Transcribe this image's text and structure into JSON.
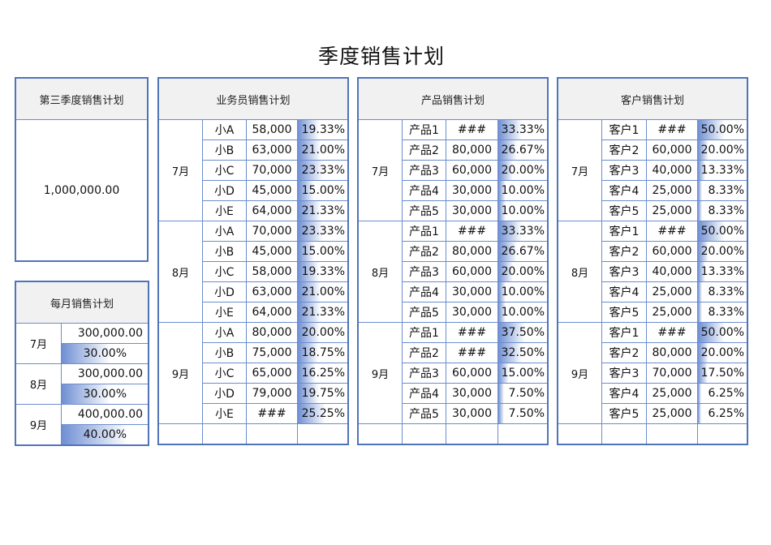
{
  "page_title": "季度销售计划",
  "quarter_panel": {
    "header": "第三季度销售计划",
    "total": "1,000,000.00"
  },
  "monthly_panel": {
    "header": "每月销售计划",
    "rows": [
      {
        "month": "7月",
        "amount": "300,000.00",
        "pct": "30.00%",
        "bar": 30
      },
      {
        "month": "8月",
        "amount": "300,000.00",
        "pct": "30.00%",
        "bar": 30
      },
      {
        "month": "9月",
        "amount": "400,000.00",
        "pct": "40.00%",
        "bar": 40
      }
    ]
  },
  "salesman_panel": {
    "header": "业务员销售计划",
    "groups": [
      {
        "month": "7月",
        "rows": [
          {
            "name": "小A",
            "amount": "58,000",
            "pct": "19.33%"
          },
          {
            "name": "小B",
            "amount": "63,000",
            "pct": "21.00%"
          },
          {
            "name": "小C",
            "amount": "70,000",
            "pct": "23.33%"
          },
          {
            "name": "小D",
            "amount": "45,000",
            "pct": "15.00%"
          },
          {
            "name": "小E",
            "amount": "64,000",
            "pct": "21.33%"
          }
        ]
      },
      {
        "month": "8月",
        "rows": [
          {
            "name": "小A",
            "amount": "70,000",
            "pct": "23.33%"
          },
          {
            "name": "小B",
            "amount": "45,000",
            "pct": "15.00%"
          },
          {
            "name": "小C",
            "amount": "58,000",
            "pct": "19.33%"
          },
          {
            "name": "小D",
            "amount": "63,000",
            "pct": "21.00%"
          },
          {
            "name": "小E",
            "amount": "64,000",
            "pct": "21.33%"
          }
        ]
      },
      {
        "month": "9月",
        "rows": [
          {
            "name": "小A",
            "amount": "80,000",
            "pct": "20.00%"
          },
          {
            "name": "小B",
            "amount": "75,000",
            "pct": "18.75%"
          },
          {
            "name": "小C",
            "amount": "65,000",
            "pct": "16.25%"
          },
          {
            "name": "小D",
            "amount": "79,000",
            "pct": "19.75%"
          },
          {
            "name": "小E",
            "amount": "###",
            "pct": "25.25%"
          }
        ]
      }
    ]
  },
  "product_panel": {
    "header": "产品销售计划",
    "groups": [
      {
        "month": "7月",
        "rows": [
          {
            "name": "产品1",
            "amount": "###",
            "pct": "33.33%"
          },
          {
            "name": "产品2",
            "amount": "80,000",
            "pct": "26.67%"
          },
          {
            "name": "产品3",
            "amount": "60,000",
            "pct": "20.00%"
          },
          {
            "name": "产品4",
            "amount": "30,000",
            "pct": "10.00%"
          },
          {
            "name": "产品5",
            "amount": "30,000",
            "pct": "10.00%"
          }
        ]
      },
      {
        "month": "8月",
        "rows": [
          {
            "name": "产品1",
            "amount": "###",
            "pct": "33.33%"
          },
          {
            "name": "产品2",
            "amount": "80,000",
            "pct": "26.67%"
          },
          {
            "name": "产品3",
            "amount": "60,000",
            "pct": "20.00%"
          },
          {
            "name": "产品4",
            "amount": "30,000",
            "pct": "10.00%"
          },
          {
            "name": "产品5",
            "amount": "30,000",
            "pct": "10.00%"
          }
        ]
      },
      {
        "month": "9月",
        "rows": [
          {
            "name": "产品1",
            "amount": "###",
            "pct": "37.50%"
          },
          {
            "name": "产品2",
            "amount": "###",
            "pct": "32.50%"
          },
          {
            "name": "产品3",
            "amount": "60,000",
            "pct": "15.00%"
          },
          {
            "name": "产品4",
            "amount": "30,000",
            "pct": "7.50%"
          },
          {
            "name": "产品5",
            "amount": "30,000",
            "pct": "7.50%"
          }
        ]
      }
    ]
  },
  "customer_panel": {
    "header": "客户销售计划",
    "groups": [
      {
        "month": "7月",
        "rows": [
          {
            "name": "客户1",
            "amount": "###",
            "pct": "50.00%"
          },
          {
            "name": "客户2",
            "amount": "60,000",
            "pct": "20.00%"
          },
          {
            "name": "客户3",
            "amount": "40,000",
            "pct": "13.33%"
          },
          {
            "name": "客户4",
            "amount": "25,000",
            "pct": "8.33%"
          },
          {
            "name": "客户5",
            "amount": "25,000",
            "pct": "8.33%"
          }
        ]
      },
      {
        "month": "8月",
        "rows": [
          {
            "name": "客户1",
            "amount": "###",
            "pct": "50.00%"
          },
          {
            "name": "客户2",
            "amount": "60,000",
            "pct": "20.00%"
          },
          {
            "name": "客户3",
            "amount": "40,000",
            "pct": "13.33%"
          },
          {
            "name": "客户4",
            "amount": "25,000",
            "pct": "8.33%"
          },
          {
            "name": "客户5",
            "amount": "25,000",
            "pct": "8.33%"
          }
        ]
      },
      {
        "month": "9月",
        "rows": [
          {
            "name": "客户1",
            "amount": "###",
            "pct": "50.00%"
          },
          {
            "name": "客户2",
            "amount": "80,000",
            "pct": "20.00%"
          },
          {
            "name": "客户3",
            "amount": "70,000",
            "pct": "17.50%"
          },
          {
            "name": "客户4",
            "amount": "25,000",
            "pct": "6.25%"
          },
          {
            "name": "客户5",
            "amount": "25,000",
            "pct": "6.25%"
          }
        ]
      }
    ]
  },
  "colors": {
    "border": "#4f74b8",
    "grid": "#6b8dcc",
    "header_bg": "#f1f1f1",
    "databar": "#6f8fd3"
  }
}
